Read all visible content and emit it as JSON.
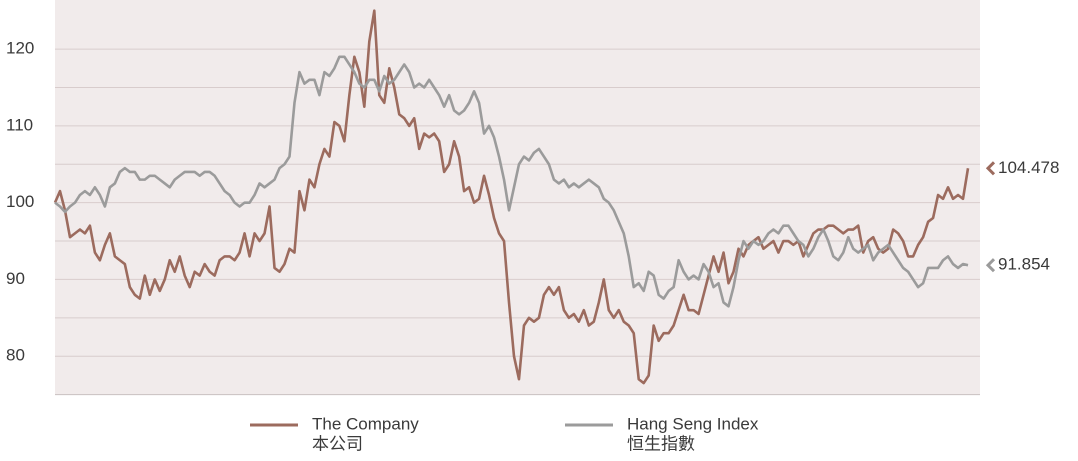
{
  "chart_data": {
    "type": "line",
    "ylim": [
      75,
      125
    ],
    "yticks": [
      80,
      90,
      100,
      110,
      120
    ],
    "minor_yticks": [
      85,
      95,
      105,
      115
    ],
    "grid": true,
    "background": "#f1ebeb",
    "series": [
      {
        "name": "The Company",
        "subname": "本公司",
        "color": "#9c6b5e",
        "end_label": true,
        "values": [
          100,
          101.5,
          99,
          95.5,
          96,
          96.5,
          96,
          97,
          93.5,
          92.5,
          94.5,
          96,
          93,
          92.5,
          92,
          89,
          88,
          87.5,
          90.5,
          88,
          90,
          88.5,
          90,
          92.5,
          91,
          93,
          90.5,
          89,
          91,
          90.5,
          92,
          91,
          90.5,
          92.5,
          93,
          93,
          92.5,
          93.5,
          96,
          93,
          96,
          95,
          96,
          99.5,
          91.5,
          91,
          92,
          94,
          93.5,
          101.5,
          99,
          103,
          102,
          105,
          107,
          106,
          110.5,
          110,
          108,
          114,
          119,
          117,
          112.5,
          121,
          125,
          114,
          113,
          117.5,
          115,
          111.5,
          111,
          110,
          111,
          107,
          109,
          108.5,
          109,
          108,
          104,
          105,
          108,
          106,
          101.5,
          102,
          100,
          100.5,
          103.5,
          101,
          98,
          96,
          95,
          87,
          80,
          77,
          84,
          85,
          84.5,
          85,
          88,
          89,
          88,
          89,
          86,
          85,
          85.5,
          84.5,
          86,
          84,
          84.5,
          87,
          90,
          86,
          85,
          86,
          84.5,
          84,
          83,
          77,
          76.5,
          77.5,
          84,
          82,
          83,
          83,
          84,
          86,
          88,
          86,
          86,
          85.5,
          88,
          90.5,
          93,
          91,
          93.5,
          89.5,
          91,
          94,
          93,
          94.5,
          95,
          95.5,
          94,
          94.5,
          95,
          93.5,
          95,
          95,
          94.5,
          95,
          93,
          94.5,
          96,
          96.5,
          96.5,
          97,
          97,
          96.5,
          96,
          96.5,
          96.5,
          97,
          93.5,
          95,
          95.5,
          94,
          93.5,
          94,
          96.5,
          96,
          95,
          93,
          93,
          94.5,
          95.5,
          97.5,
          98,
          101,
          100.5,
          102,
          100.5,
          101,
          100.5,
          104.478
        ]
      },
      {
        "name": "Hang Seng Index",
        "subname": "恒生指數",
        "color": "#9b9b9b",
        "end_label": true,
        "values": [
          100,
          99.5,
          98.8,
          99.5,
          100,
          101,
          101.5,
          101,
          102,
          101,
          99.5,
          102,
          102.5,
          104,
          104.5,
          104,
          104,
          103,
          103,
          103.5,
          103.5,
          103,
          102.5,
          102,
          103,
          103.5,
          104,
          104,
          104,
          103.5,
          104,
          104,
          103.5,
          102.5,
          101.5,
          101,
          100,
          99.5,
          100,
          100,
          101,
          102.5,
          102,
          102.5,
          103,
          104.5,
          105,
          106,
          113,
          117,
          115.5,
          116,
          116,
          114,
          117,
          116.5,
          117.5,
          119,
          119,
          118,
          117,
          115.5,
          115,
          116,
          116,
          114.5,
          116.5,
          115.5,
          116,
          117,
          118,
          117,
          115,
          115.5,
          115,
          116,
          115,
          114,
          112.5,
          114,
          112,
          111.5,
          112,
          113,
          114.5,
          113,
          109,
          110,
          108.5,
          106,
          103,
          99,
          102,
          105,
          106,
          105.5,
          106.5,
          107,
          106,
          105,
          103,
          102.5,
          103,
          102,
          102.5,
          102,
          102.5,
          103,
          102.5,
          102,
          100.5,
          100,
          99,
          97.5,
          96,
          93,
          89,
          89.5,
          88.5,
          91,
          90.5,
          88,
          87.5,
          88.5,
          89,
          92.5,
          91,
          90,
          90.5,
          90,
          92,
          91,
          89,
          89.5,
          87,
          86.5,
          89,
          92.5,
          95,
          94,
          95,
          94.5,
          95,
          96,
          96.5,
          96,
          97,
          97,
          96,
          95,
          94.5,
          93,
          94,
          95.5,
          96.5,
          95,
          93,
          92.5,
          93.5,
          95.5,
          94,
          93.5,
          94,
          94.5,
          92.5,
          93.5,
          94,
          94.5,
          93.5,
          92.5,
          91.5,
          91,
          90,
          89,
          89.5,
          91.5,
          91.5,
          91.5,
          92.5,
          93,
          92,
          91.5,
          92,
          91.854
        ]
      }
    ]
  }
}
